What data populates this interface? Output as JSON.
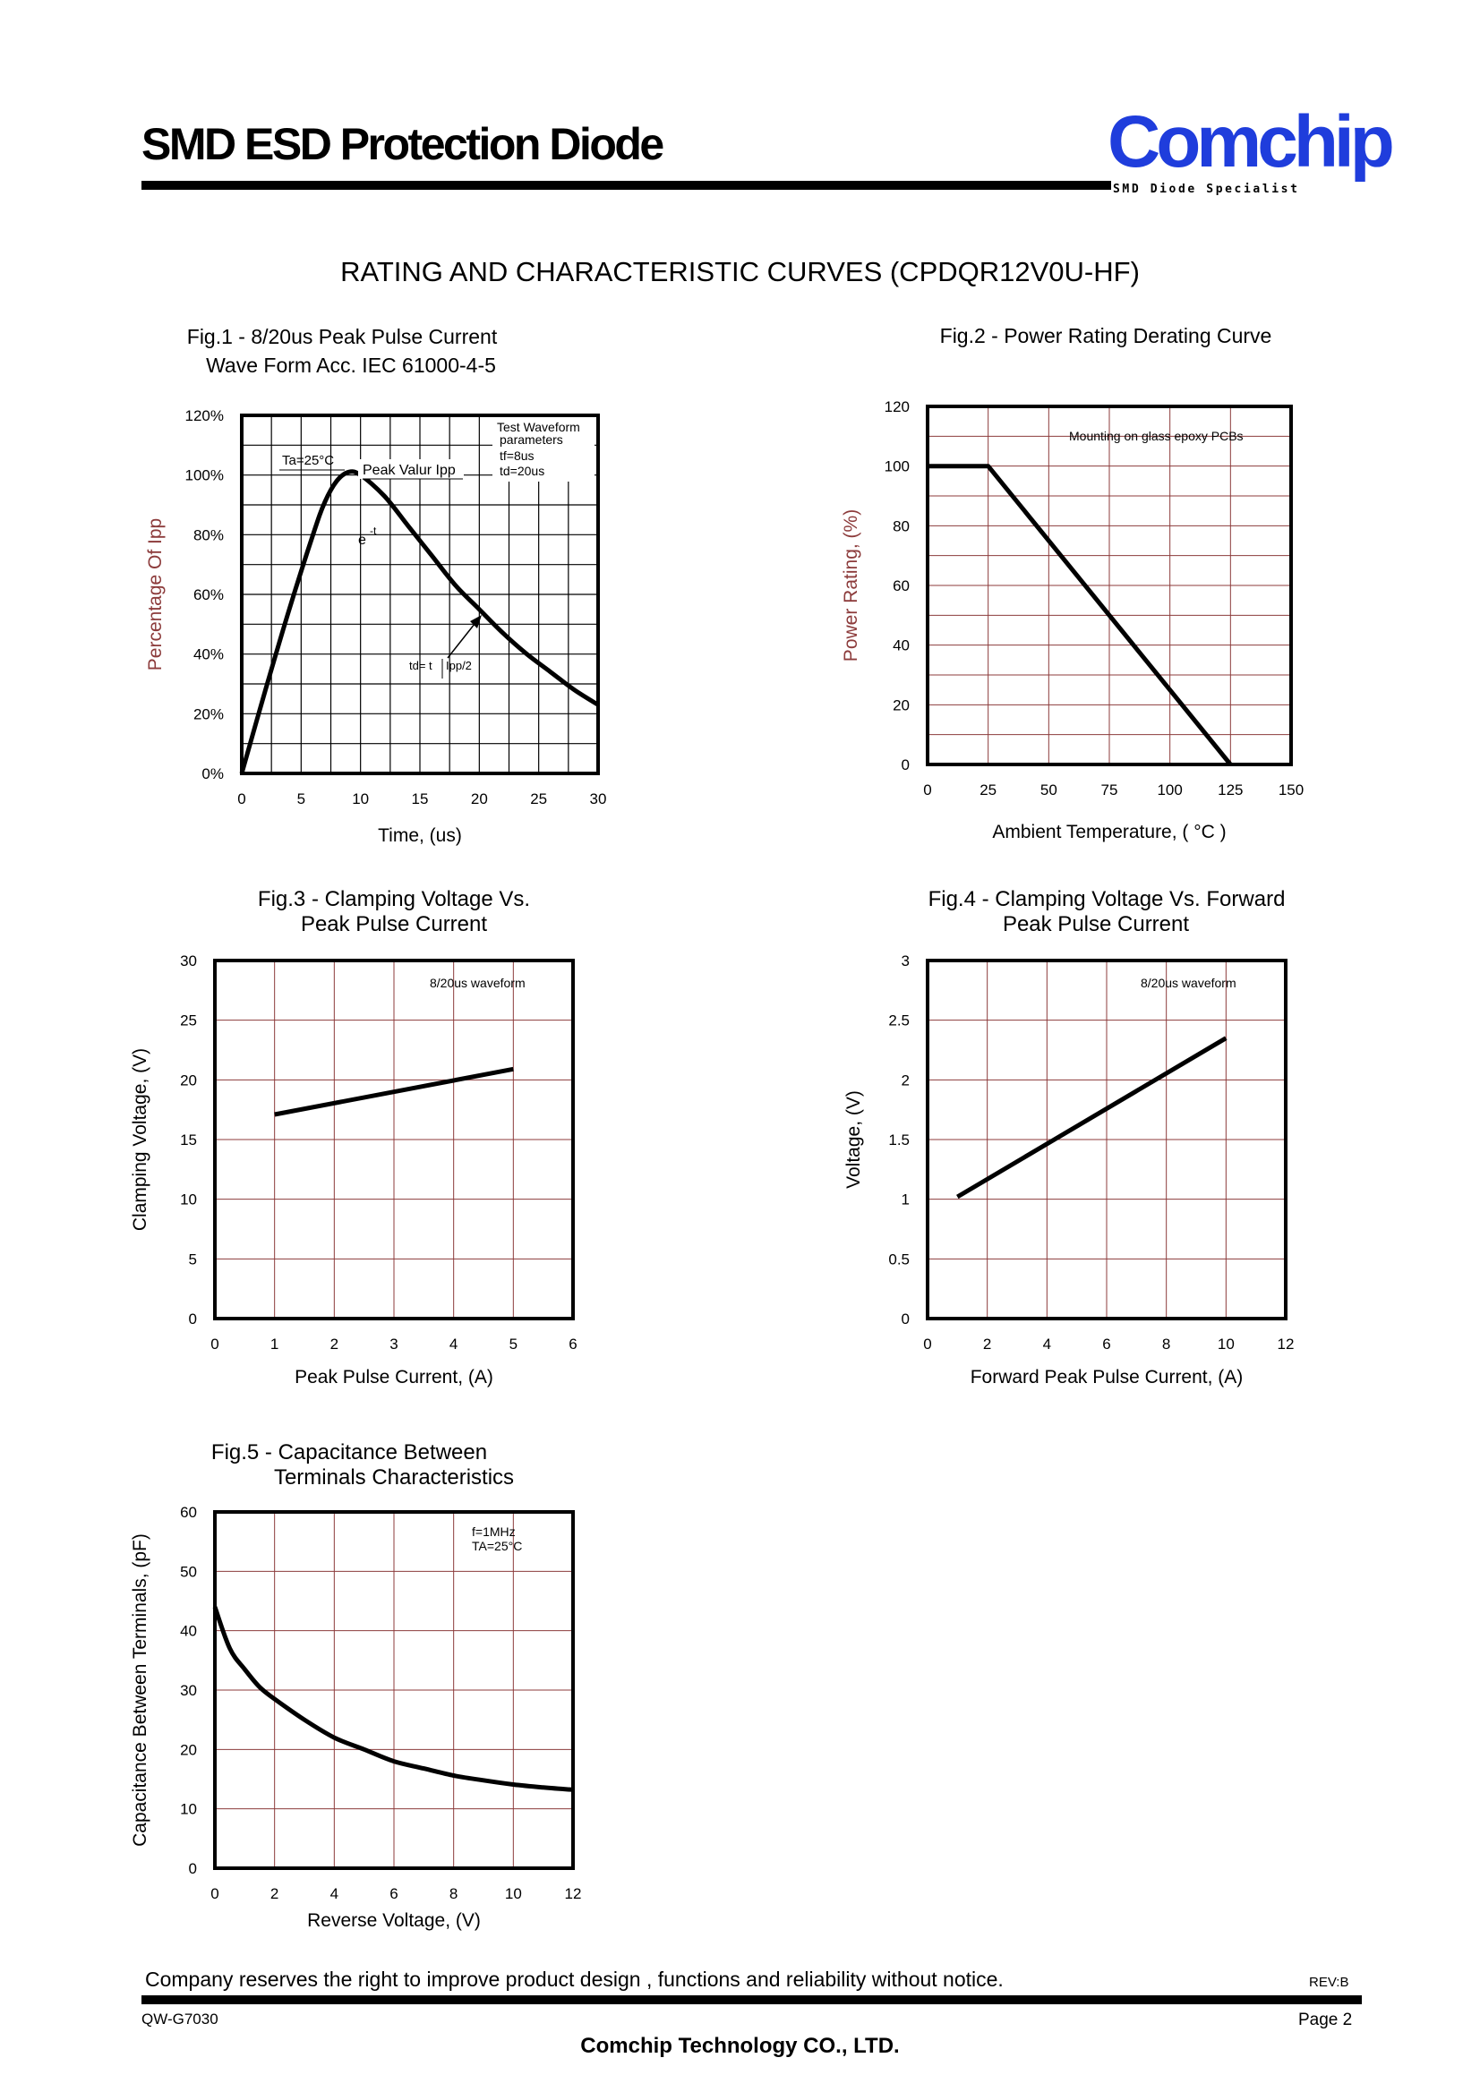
{
  "header": {
    "title": "SMD ESD Protection Diode",
    "logo": {
      "brand": "Comchip",
      "tagline": "SMD Diode Specialist",
      "color": "#1f3ddc"
    }
  },
  "page_heading": "RATING AND CHARACTERISTIC CURVES (CPDQR12V0U-HF)",
  "chart_data": [
    {
      "id": "fig1",
      "type": "line",
      "title": "Fig.1 - 8/20us Peak Pulse Current",
      "subtitle": "Wave Form Acc. IEC 61000-4-5",
      "xlabel": "Time, (us)",
      "ylabel": "Percentage Of Ipp",
      "xlim": [
        0,
        30
      ],
      "ylim": [
        0,
        120
      ],
      "xticks": [
        "0",
        "5",
        "10",
        "15",
        "20",
        "25",
        "30"
      ],
      "yticks": [
        "0%",
        "20%",
        "40%",
        "60%",
        "80%",
        "100%",
        "120%"
      ],
      "grid": true,
      "annotations": [
        "Test Waveform",
        "parameters",
        "tf=8us",
        "td=20us",
        "Ta=25°C",
        "Peak Valur Ipp",
        "e",
        "-t",
        "td= t",
        "Ipp/2"
      ],
      "x": [
        0,
        2,
        4,
        6,
        7,
        8,
        9,
        10,
        12,
        14,
        16,
        18,
        20,
        22,
        24,
        26,
        28,
        30
      ],
      "y": [
        0,
        28,
        55,
        80,
        91,
        98,
        101,
        100,
        93,
        83,
        73,
        63,
        55,
        47,
        40,
        34,
        28,
        23
      ]
    },
    {
      "id": "fig2",
      "type": "line",
      "title": "Fig.2 - Power Rating Derating Curve",
      "xlabel": "Ambient Temperature, ( °C )",
      "ylabel": "Power Rating, (%)",
      "xlim": [
        0,
        150
      ],
      "ylim": [
        0,
        120
      ],
      "xticks": [
        "0",
        "25",
        "50",
        "75",
        "100",
        "125",
        "150"
      ],
      "yticks": [
        "0",
        "20",
        "40",
        "60",
        "80",
        "100",
        "120"
      ],
      "grid": true,
      "annotations": [
        "Mounting on glass epoxy PCBs"
      ],
      "x": [
        0,
        25,
        125
      ],
      "y": [
        100,
        100,
        0
      ]
    },
    {
      "id": "fig3",
      "type": "line",
      "title": "Fig.3 - Clamping Voltage Vs.",
      "subtitle": "Peak Pulse Current",
      "xlabel": "Peak Pulse Current, (A)",
      "ylabel": "Clamping Voltage, (V)",
      "xlim": [
        0,
        6
      ],
      "ylim": [
        0,
        30
      ],
      "xticks": [
        "0",
        "1",
        "2",
        "3",
        "4",
        "5",
        "6"
      ],
      "yticks": [
        "0",
        "5",
        "10",
        "15",
        "20",
        "25",
        "30"
      ],
      "grid": true,
      "annotations": [
        "8/20us waveform"
      ],
      "x": [
        1,
        5
      ],
      "y": [
        17.1,
        20.9
      ]
    },
    {
      "id": "fig4",
      "type": "line",
      "title": "Fig.4 - Clamping Voltage Vs. Forward",
      "subtitle": "Peak Pulse Current",
      "xlabel": "Forward Peak Pulse Current, (A)",
      "ylabel": "Voltage, (V)",
      "xlim": [
        0,
        12
      ],
      "ylim": [
        0,
        3
      ],
      "xticks": [
        "0",
        "2",
        "4",
        "6",
        "8",
        "10",
        "12"
      ],
      "yticks": [
        "0",
        "0.5",
        "1",
        "1.5",
        "2",
        "2.5",
        "3"
      ],
      "grid": true,
      "annotations": [
        "8/20us waveform"
      ],
      "x": [
        1,
        10
      ],
      "y": [
        1.02,
        2.35
      ]
    },
    {
      "id": "fig5",
      "type": "line",
      "title": "Fig.5 - Capacitance Between",
      "subtitle": "Terminals Characteristics",
      "xlabel": "Reverse Voltage, (V)",
      "ylabel": "Capacitance Between Terminals, (pF)",
      "xlim": [
        0,
        12
      ],
      "ylim": [
        0,
        60
      ],
      "xticks": [
        "0",
        "2",
        "4",
        "6",
        "8",
        "10",
        "12"
      ],
      "yticks": [
        "0",
        "10",
        "20",
        "30",
        "40",
        "50",
        "60"
      ],
      "grid": true,
      "annotations": [
        "f=1MHz",
        "TA=25°C"
      ],
      "x": [
        0,
        0.5,
        1,
        1.5,
        2,
        3,
        4,
        5,
        6,
        7,
        8,
        9,
        10,
        11,
        12
      ],
      "y": [
        44,
        37,
        33.5,
        30.5,
        28.5,
        25,
        22,
        20,
        18,
        16.8,
        15.6,
        14.8,
        14.1,
        13.6,
        13.2
      ]
    }
  ],
  "footer": {
    "notice": "Company reserves the right to improve product design , functions and reliability without notice.",
    "rev": "REV:B",
    "doc_no": "QW-G7030",
    "page": "Page 2",
    "company": "Comchip Technology CO., LTD."
  }
}
